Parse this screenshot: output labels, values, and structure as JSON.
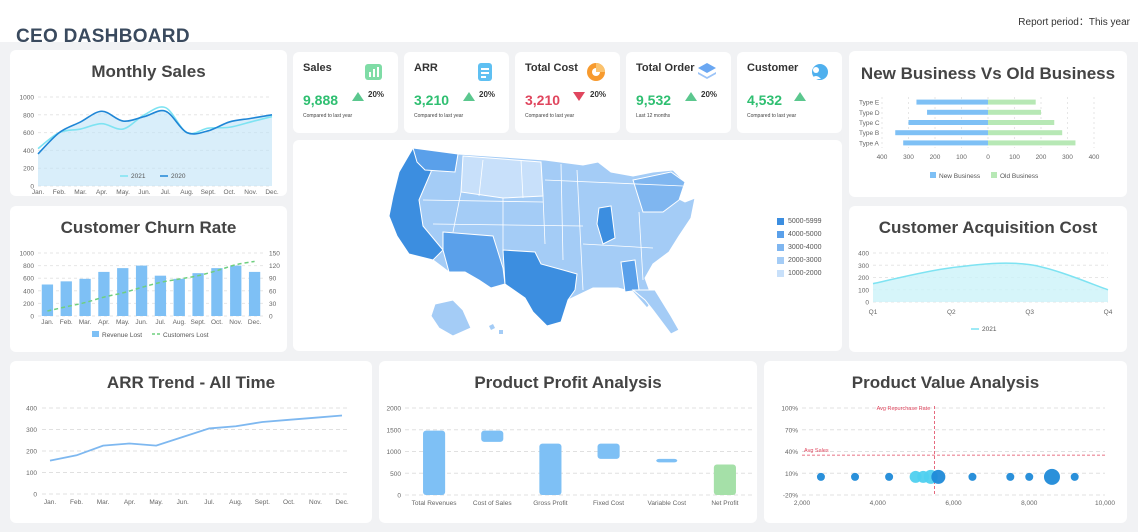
{
  "header": {
    "title": "CEO DASHBOARD",
    "report_period": "Report period：This year"
  },
  "colors": {
    "green": "#2fbf71",
    "red": "#e0465e",
    "blue": "#3c8ee0",
    "light_blue": "#8ecbf5",
    "cyan": "#6cdcef"
  },
  "kpis": [
    {
      "label": "Sales",
      "value": "9,888",
      "change": "20%",
      "direction": "up",
      "note": "Compared to last year",
      "icon": "sales-chart-icon"
    },
    {
      "label": "ARR",
      "value": "3,210",
      "change": "20%",
      "direction": "up",
      "note": "Compared to last year",
      "icon": "arr-document-icon"
    },
    {
      "label": "Total Cost",
      "value": "3,210",
      "change": "20%",
      "direction": "down",
      "note": "Compared to last year",
      "icon": "cost-donut-icon"
    },
    {
      "label": "Total Order",
      "value": "9,532",
      "change": "20%",
      "direction": "up",
      "note": "Last 12 months",
      "icon": "order-layers-icon"
    },
    {
      "label": "Customer",
      "value": "4,532",
      "change": "",
      "direction": "up",
      "note": "Compared to last year",
      "icon": "customer-users-icon"
    }
  ],
  "map": {
    "legend": [
      "5000-5999",
      "4000-5000",
      "3000-4000",
      "2000-3000",
      "1000-2000"
    ],
    "legend_colors": [
      "#3c8ee0",
      "#5aa0ea",
      "#7fb6f0",
      "#a4ccf6",
      "#c8e0fa"
    ]
  },
  "chart_data": [
    {
      "id": "monthly_sales",
      "type": "area",
      "title": "Monthly Sales",
      "categories": [
        "Jan.",
        "Feb.",
        "Mar.",
        "Apr.",
        "May.",
        "Jun.",
        "Jul.",
        "Aug.",
        "Sept.",
        "Oct.",
        "Nov.",
        "Dec."
      ],
      "yticks": [
        0,
        200,
        400,
        600,
        800,
        1000
      ],
      "ylim": [
        0,
        1000
      ],
      "series": [
        {
          "name": "2021",
          "values": [
            420,
            600,
            640,
            700,
            640,
            800,
            880,
            600,
            650,
            660,
            720,
            780
          ]
        },
        {
          "name": "2020",
          "values": [
            360,
            600,
            720,
            840,
            730,
            780,
            840,
            600,
            620,
            720,
            760,
            800
          ]
        }
      ],
      "legend": "bottom"
    },
    {
      "id": "customer_churn",
      "type": "bar",
      "title": "Customer Churn Rate",
      "categories": [
        "Jan.",
        "Feb.",
        "Mar.",
        "Apr.",
        "May.",
        "Jun.",
        "Jul.",
        "Aug.",
        "Sept.",
        "Oct.",
        "Nov.",
        "Dec."
      ],
      "yticks_left": [
        0,
        200,
        400,
        600,
        800,
        1000
      ],
      "ylim_left": [
        0,
        1000
      ],
      "yticks_right": [
        0,
        30,
        60,
        90,
        120,
        150
      ],
      "ylim_right": [
        0,
        150
      ],
      "series": [
        {
          "name": "Revenue Lost",
          "type": "bar",
          "values": [
            500,
            550,
            590,
            700,
            760,
            800,
            640,
            590,
            680,
            760,
            800,
            700
          ]
        },
        {
          "name": "Customers Lost",
          "type": "line",
          "values": [
            12,
            22,
            32,
            45,
            55,
            68,
            80,
            88,
            96,
            108,
            122,
            130
          ]
        }
      ],
      "legend": "bottom"
    },
    {
      "id": "new_vs_old",
      "type": "bar",
      "title": "New Business Vs Old Business",
      "categories": [
        "Type A",
        "Type B",
        "Type C",
        "Type D",
        "Type E"
      ],
      "xticks": [
        "400",
        "300",
        "200",
        "100",
        "0",
        "100",
        "200",
        "300",
        "400"
      ],
      "series": [
        {
          "name": "New Business",
          "values": [
            320,
            350,
            300,
            230,
            270
          ]
        },
        {
          "name": "Old Business",
          "values": [
            330,
            280,
            250,
            200,
            180
          ]
        }
      ],
      "legend": "bottom"
    },
    {
      "id": "acquisition_cost",
      "type": "area",
      "title": "Customer Acquisition Cost",
      "categories": [
        "Q1",
        "Q2",
        "Q3",
        "Q4"
      ],
      "yticks": [
        0,
        100,
        200,
        300,
        400
      ],
      "ylim": [
        0,
        400
      ],
      "series": [
        {
          "name": "2021",
          "values": [
            150,
            280,
            305,
            100
          ]
        }
      ],
      "legend": "bottom"
    },
    {
      "id": "arr_trend",
      "type": "line",
      "title": "ARR Trend - All Time",
      "categories": [
        "Jan.",
        "Feb.",
        "Mar.",
        "Apr.",
        "May.",
        "Jun.",
        "Jul.",
        "Aug.",
        "Sept.",
        "Oct.",
        "Nov.",
        "Dec."
      ],
      "yticks": [
        0,
        100,
        200,
        300,
        400
      ],
      "ylim": [
        0,
        400
      ],
      "series": [
        {
          "name": "ARR",
          "values": [
            155,
            180,
            225,
            235,
            225,
            265,
            305,
            315,
            335,
            345,
            355,
            365
          ]
        }
      ]
    },
    {
      "id": "profit_analysis",
      "type": "bar",
      "title": "Product Profit Analysis",
      "categories": [
        "Total Revenues",
        "Cost of Sales",
        "Gross Profit",
        "Fixed Cost",
        "Variable Cost",
        "Net Profit"
      ],
      "yticks": [
        0,
        500,
        1000,
        1500,
        2000
      ],
      "ylim": [
        0,
        2000
      ],
      "series": [
        {
          "name": "Profit",
          "ranges": [
            [
              0,
              1480
            ],
            [
              1220,
              1480
            ],
            [
              0,
              1180
            ],
            [
              830,
              1180
            ],
            [
              750,
              830
            ],
            [
              0,
              700
            ]
          ]
        }
      ]
    },
    {
      "id": "product_value",
      "type": "scatter",
      "title": "Product Value Analysis",
      "xticks": [
        "2,000",
        "4,000",
        "6,000",
        "8,000",
        "10,000"
      ],
      "xlim": [
        2000,
        10000
      ],
      "yticks": [
        "100%",
        "70%",
        "40%",
        "10%",
        "-20%"
      ],
      "ylim": [
        -20,
        100
      ],
      "annotations": [
        "Avg Repurchase Rate",
        "Avg Sales"
      ],
      "avg_repurchase_x": 5500,
      "avg_sales_y": 35,
      "series": [
        {
          "name": "Products",
          "points": [
            [
              2500,
              5,
              4
            ],
            [
              3400,
              5,
              4
            ],
            [
              4300,
              5,
              4
            ],
            [
              5000,
              5,
              6
            ],
            [
              5200,
              5,
              6
            ],
            [
              5400,
              5,
              7
            ],
            [
              5600,
              5,
              7
            ],
            [
              6500,
              5,
              4
            ],
            [
              7500,
              5,
              4
            ],
            [
              8000,
              5,
              4
            ],
            [
              8600,
              5,
              8
            ],
            [
              9200,
              5,
              4
            ]
          ]
        }
      ]
    }
  ]
}
